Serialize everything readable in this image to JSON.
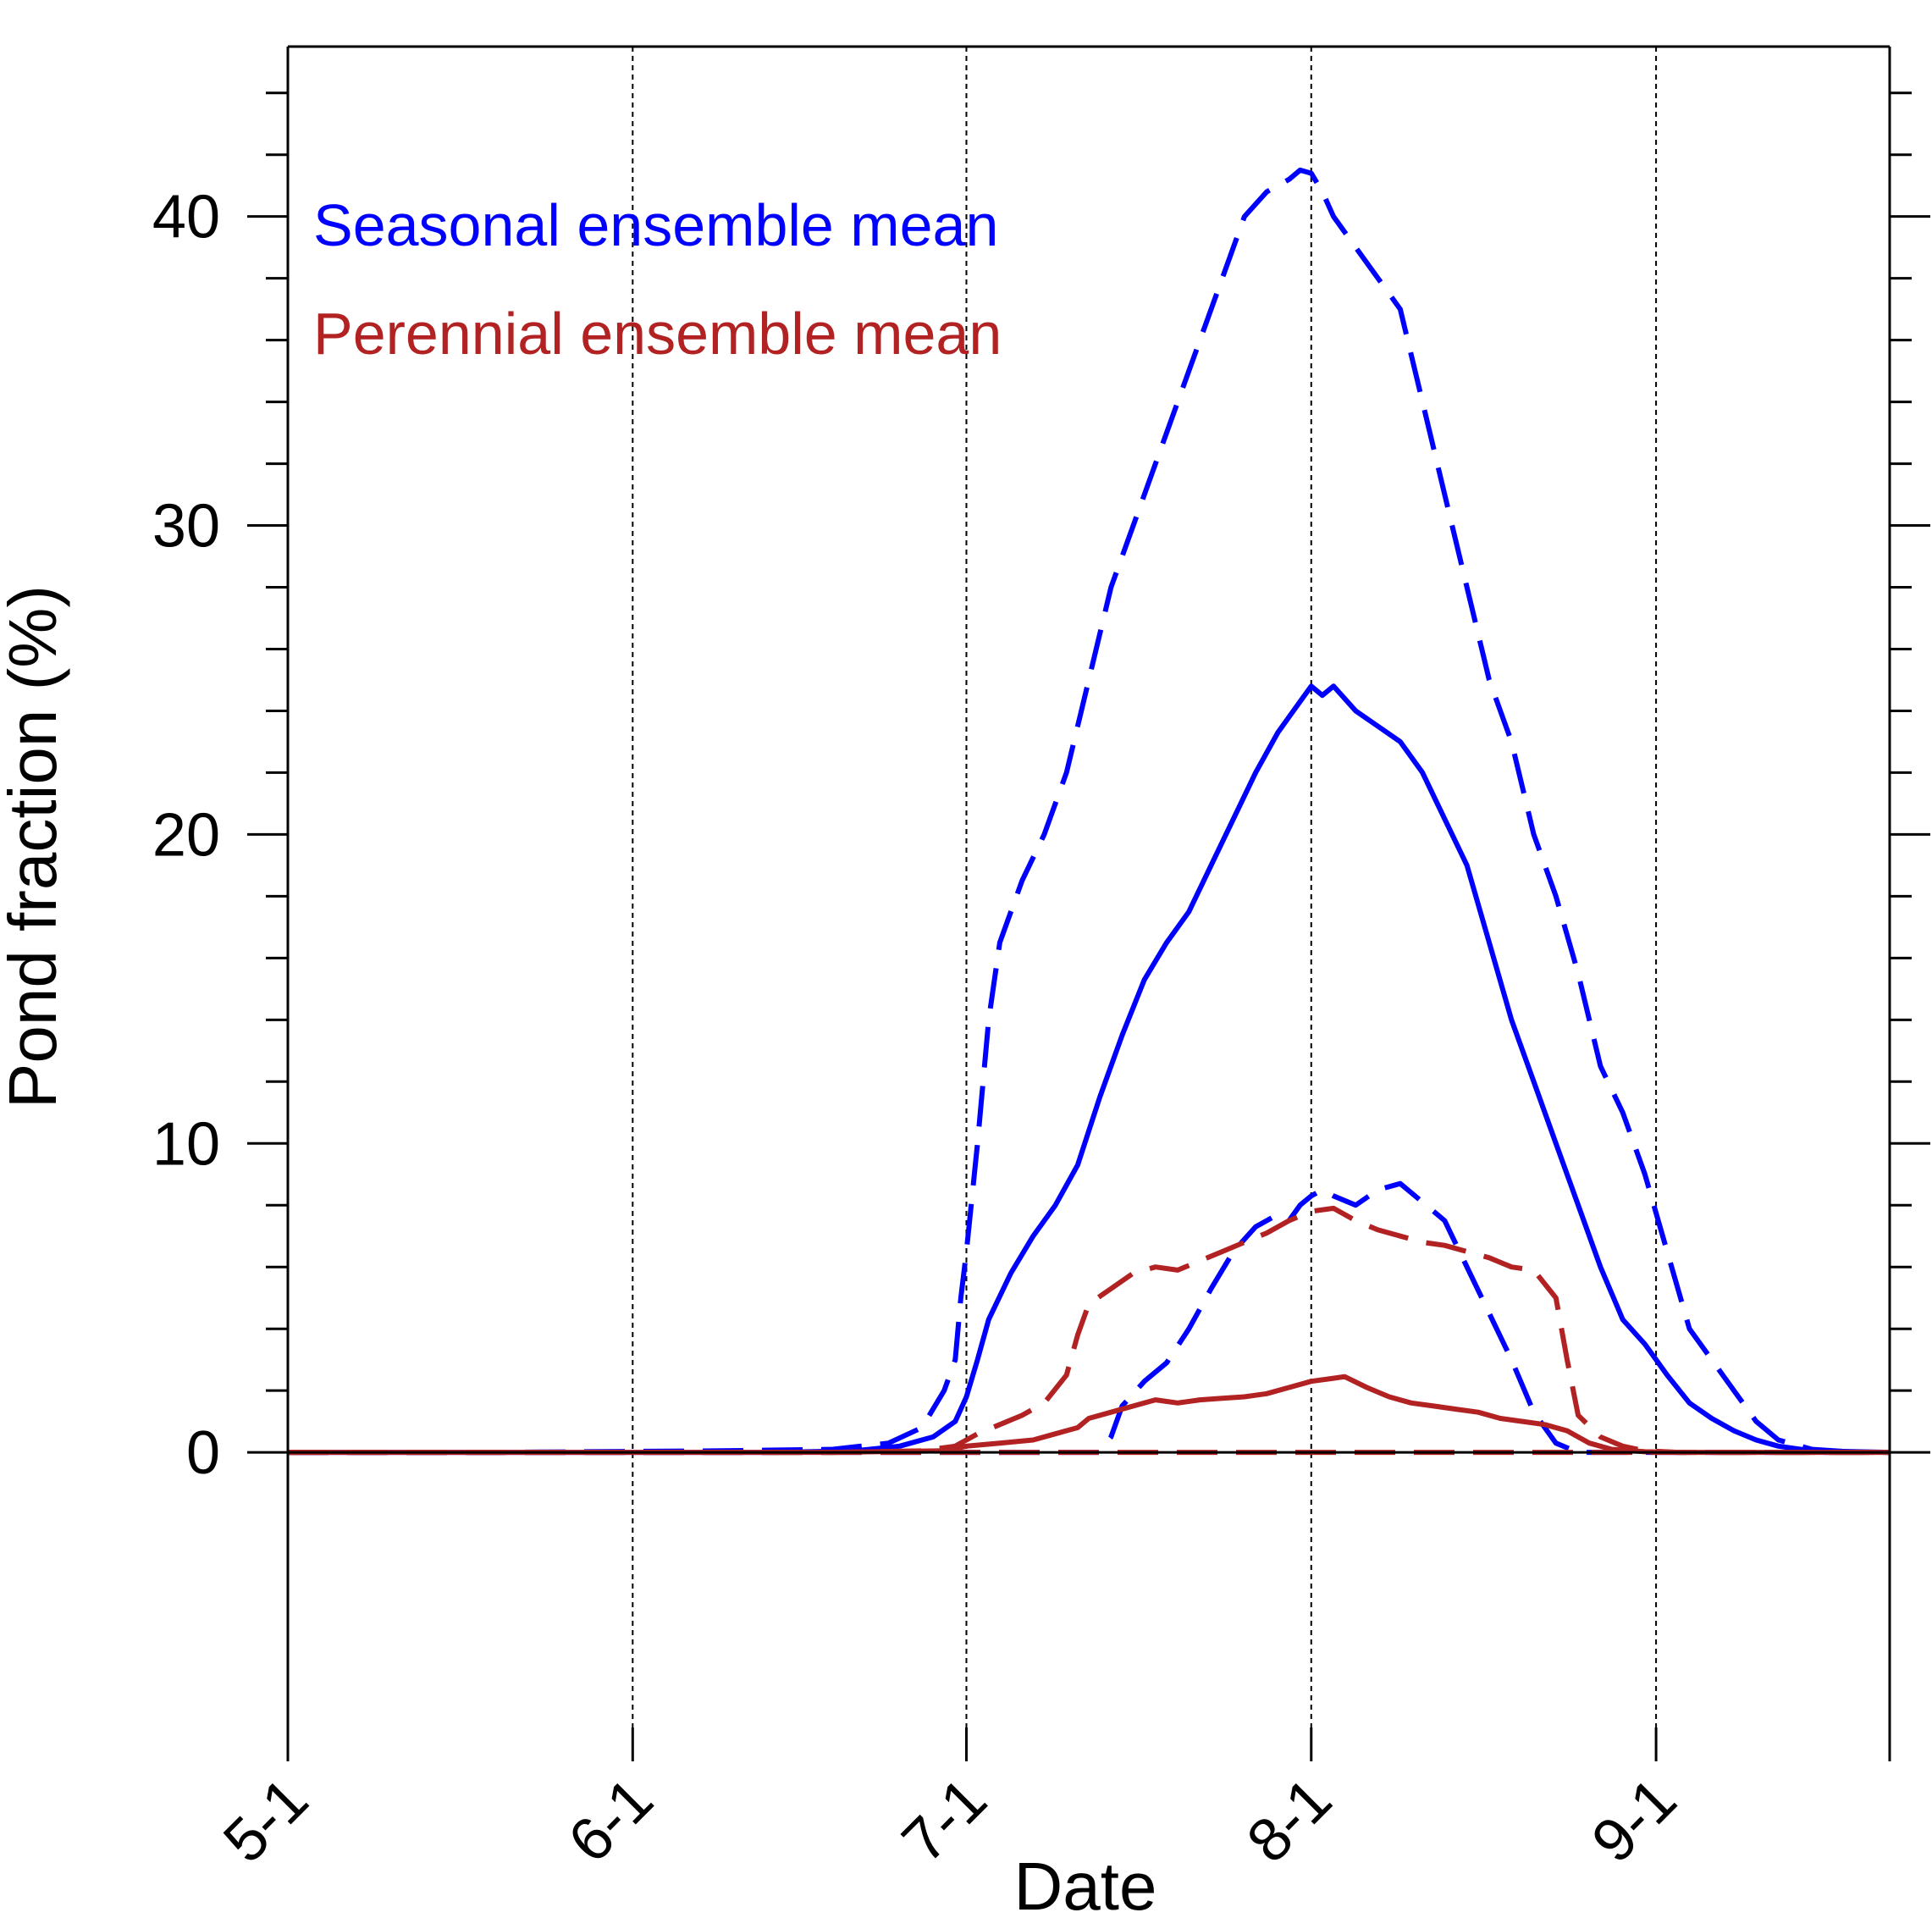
{
  "chart_data": {
    "type": "line",
    "xlabel": "Date",
    "ylabel": "Pond fraction (%)",
    "x_units": "day of year",
    "xlim": [
      121,
      265
    ],
    "ylim": [
      -10,
      45.5
    ],
    "x_ticks": [
      {
        "value": 121,
        "label": "5-1"
      },
      {
        "value": 152,
        "label": "6-1"
      },
      {
        "value": 182,
        "label": "7-1"
      },
      {
        "value": 213,
        "label": "8-1"
      },
      {
        "value": 244,
        "label": "9-1"
      }
    ],
    "y_ticks": [
      {
        "value": 0,
        "label": "0"
      },
      {
        "value": 10,
        "label": "10"
      },
      {
        "value": 20,
        "label": "20"
      },
      {
        "value": 30,
        "label": "30"
      },
      {
        "value": 40,
        "label": "40"
      }
    ],
    "grid": "vertical dotted lines at date ticks",
    "legend": [
      {
        "label": "Seasonal ensemble mean",
        "color": "#0000ff"
      },
      {
        "label": "Perennial ensemble mean",
        "color": "#b22222"
      }
    ],
    "series": [
      {
        "name": "Seasonal ensemble mean (dashed, high)",
        "color": "#0000ff",
        "dash": "long",
        "points": [
          [
            121,
            0
          ],
          [
            140,
            0
          ],
          [
            160,
            0.05
          ],
          [
            170,
            0.1
          ],
          [
            175,
            0.3
          ],
          [
            178,
            0.8
          ],
          [
            180,
            2
          ],
          [
            181,
            3
          ],
          [
            181.5,
            5
          ],
          [
            182,
            6.5
          ],
          [
            183,
            10
          ],
          [
            184,
            14
          ],
          [
            185,
            16.5
          ],
          [
            187,
            18.5
          ],
          [
            189,
            20
          ],
          [
            191,
            22
          ],
          [
            193,
            25
          ],
          [
            195,
            28
          ],
          [
            197,
            30
          ],
          [
            199,
            32
          ],
          [
            201,
            34
          ],
          [
            203,
            36
          ],
          [
            205,
            38
          ],
          [
            207,
            40
          ],
          [
            209,
            40.8
          ],
          [
            211,
            41.2
          ],
          [
            212,
            41.5
          ],
          [
            213,
            41.4
          ],
          [
            214,
            40.8
          ],
          [
            215,
            40
          ],
          [
            217,
            39
          ],
          [
            219,
            38
          ],
          [
            221,
            37
          ],
          [
            223,
            34
          ],
          [
            225,
            31
          ],
          [
            227,
            28
          ],
          [
            229,
            25
          ],
          [
            231,
            23
          ],
          [
            233,
            20
          ],
          [
            235,
            18
          ],
          [
            237,
            15.5
          ],
          [
            239,
            12.5
          ],
          [
            241,
            11
          ],
          [
            243,
            9
          ],
          [
            245,
            6.5
          ],
          [
            247,
            4
          ],
          [
            249,
            3
          ],
          [
            251,
            2
          ],
          [
            253,
            1
          ],
          [
            255,
            0.4
          ],
          [
            258,
            0.1
          ],
          [
            262,
            0
          ]
        ]
      },
      {
        "name": "Seasonal ensemble mean (solid)",
        "color": "#0000ff",
        "dash": "solid",
        "points": [
          [
            121,
            0
          ],
          [
            150,
            0
          ],
          [
            165,
            0
          ],
          [
            172,
            0.05
          ],
          [
            176,
            0.2
          ],
          [
            179,
            0.5
          ],
          [
            181,
            1
          ],
          [
            182,
            1.8
          ],
          [
            183,
            3
          ],
          [
            184,
            4.3
          ],
          [
            186,
            5.8
          ],
          [
            188,
            7
          ],
          [
            190,
            8
          ],
          [
            192,
            9.3
          ],
          [
            194,
            11.5
          ],
          [
            196,
            13.5
          ],
          [
            198,
            15.3
          ],
          [
            200,
            16.5
          ],
          [
            202,
            17.5
          ],
          [
            204,
            19
          ],
          [
            206,
            20.5
          ],
          [
            208,
            22
          ],
          [
            210,
            23.3
          ],
          [
            212,
            24.3
          ],
          [
            213,
            24.8
          ],
          [
            214,
            24.5
          ],
          [
            215,
            24.8
          ],
          [
            217,
            24
          ],
          [
            219,
            23.5
          ],
          [
            221,
            23
          ],
          [
            223,
            22
          ],
          [
            225,
            20.5
          ],
          [
            227,
            19
          ],
          [
            229,
            16.5
          ],
          [
            231,
            14
          ],
          [
            233,
            12
          ],
          [
            235,
            10
          ],
          [
            237,
            8
          ],
          [
            239,
            6
          ],
          [
            241,
            4.3
          ],
          [
            243,
            3.5
          ],
          [
            245,
            2.5
          ],
          [
            247,
            1.6
          ],
          [
            249,
            1.1
          ],
          [
            251,
            0.7
          ],
          [
            253,
            0.4
          ],
          [
            255,
            0.2
          ],
          [
            258,
            0.05
          ],
          [
            265,
            0
          ]
        ]
      },
      {
        "name": "Seasonal ensemble mean (dashed, low)",
        "color": "#0000ff",
        "dash": "long",
        "points": [
          [
            121,
            0
          ],
          [
            190,
            0
          ],
          [
            194,
            0
          ],
          [
            195,
            0.5
          ],
          [
            196,
            1.5
          ],
          [
            198,
            2.3
          ],
          [
            200,
            2.9
          ],
          [
            202,
            4
          ],
          [
            204,
            5.3
          ],
          [
            206,
            6.5
          ],
          [
            208,
            7.3
          ],
          [
            210,
            7.7
          ],
          [
            211,
            7.5
          ],
          [
            212,
            8
          ],
          [
            213,
            8.3
          ],
          [
            214,
            8.5
          ],
          [
            215,
            8.3
          ],
          [
            217,
            8
          ],
          [
            219,
            8.5
          ],
          [
            221,
            8.7
          ],
          [
            223,
            8.1
          ],
          [
            225,
            7.5
          ],
          [
            227,
            6
          ],
          [
            229,
            4.5
          ],
          [
            231,
            3
          ],
          [
            233,
            1.3
          ],
          [
            235,
            0.3
          ],
          [
            237,
            0
          ],
          [
            265,
            0
          ]
        ]
      },
      {
        "name": "Perennial ensemble mean (dashed)",
        "color": "#b22222",
        "dash": "long",
        "points": [
          [
            121,
            0
          ],
          [
            150,
            0
          ],
          [
            170,
            0
          ],
          [
            178,
            0.05
          ],
          [
            181,
            0.2
          ],
          [
            183,
            0.6
          ],
          [
            185,
            0.9
          ],
          [
            187,
            1.2
          ],
          [
            189,
            1.6
          ],
          [
            191,
            2.5
          ],
          [
            192,
            3.8
          ],
          [
            193,
            4.8
          ],
          [
            195,
            5.3
          ],
          [
            197,
            5.8
          ],
          [
            199,
            6
          ],
          [
            201,
            5.9
          ],
          [
            203,
            6.2
          ],
          [
            205,
            6.5
          ],
          [
            207,
            6.8
          ],
          [
            209,
            7.1
          ],
          [
            211,
            7.5
          ],
          [
            213,
            7.8
          ],
          [
            215,
            7.9
          ],
          [
            217,
            7.5
          ],
          [
            219,
            7.2
          ],
          [
            221,
            7
          ],
          [
            223,
            6.8
          ],
          [
            225,
            6.7
          ],
          [
            227,
            6.5
          ],
          [
            229,
            6.3
          ],
          [
            231,
            6
          ],
          [
            233,
            5.9
          ],
          [
            235,
            5
          ],
          [
            236,
            3
          ],
          [
            237,
            1.2
          ],
          [
            239,
            0.5
          ],
          [
            241,
            0.2
          ],
          [
            243,
            0.05
          ],
          [
            246,
            0
          ],
          [
            265,
            0
          ]
        ]
      },
      {
        "name": "Perennial ensemble mean (solid)",
        "color": "#b22222",
        "dash": "solid",
        "points": [
          [
            121,
            0
          ],
          [
            150,
            0
          ],
          [
            170,
            0
          ],
          [
            180,
            0.05
          ],
          [
            182,
            0.2
          ],
          [
            185,
            0.3
          ],
          [
            188,
            0.4
          ],
          [
            190,
            0.6
          ],
          [
            192,
            0.8
          ],
          [
            193,
            1.1
          ],
          [
            195,
            1.3
          ],
          [
            197,
            1.5
          ],
          [
            199,
            1.7
          ],
          [
            201,
            1.6
          ],
          [
            203,
            1.7
          ],
          [
            205,
            1.75
          ],
          [
            207,
            1.8
          ],
          [
            209,
            1.9
          ],
          [
            211,
            2.1
          ],
          [
            213,
            2.3
          ],
          [
            215,
            2.4
          ],
          [
            216,
            2.45
          ],
          [
            218,
            2.1
          ],
          [
            220,
            1.8
          ],
          [
            222,
            1.6
          ],
          [
            224,
            1.5
          ],
          [
            226,
            1.4
          ],
          [
            228,
            1.3
          ],
          [
            230,
            1.1
          ],
          [
            232,
            1
          ],
          [
            234,
            0.9
          ],
          [
            236,
            0.7
          ],
          [
            238,
            0.3
          ],
          [
            240,
            0.1
          ],
          [
            243,
            0.02
          ],
          [
            246,
            0
          ],
          [
            265,
            0
          ]
        ]
      },
      {
        "name": "Baseline (dashed)",
        "color": "#b22222",
        "dash": "long",
        "points": [
          [
            121,
            0
          ],
          [
            265,
            0
          ]
        ]
      }
    ]
  }
}
